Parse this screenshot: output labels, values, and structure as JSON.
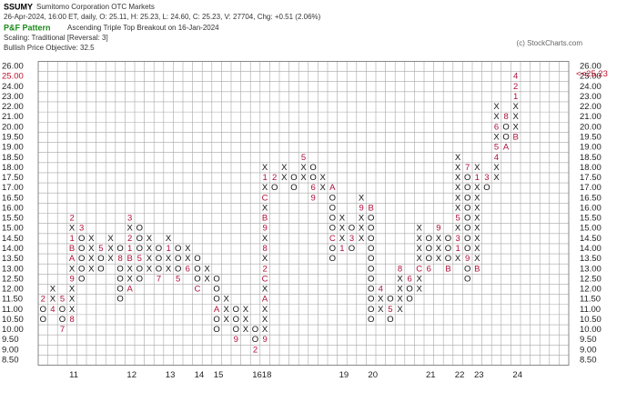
{
  "chart_data": {
    "type": "pnf",
    "header": {
      "symbol": "SSUMY",
      "company": "Sumitomo Corporation  OTC Markets",
      "quote": "26-Apr-2024, 16:00 ET, daily, O: 25.11, H: 25.23, L: 24.60, C: 25.23, V: 27704, Chg: +0.51 (2.06%)",
      "pattern_title": "P&F Pattern",
      "pattern": "Ascending Triple Top Breakout on 16-Jan-2024",
      "scaling": "Scaling: Traditional [Reversal: 3]",
      "objective": "Bullish Price Objective: 32.5",
      "copyright": "(c) StockCharts.com"
    },
    "last_price": 25.23,
    "last_price_label": "<<25.23",
    "grid": true,
    "yticks": [
      {
        "value": 8.5,
        "label": "8.50"
      },
      {
        "value": 9,
        "label": "9.00"
      },
      {
        "value": 9.5,
        "label": "9.50"
      },
      {
        "value": 10,
        "label": "10.00"
      },
      {
        "value": 10.5,
        "label": "10.50"
      },
      {
        "value": 11,
        "label": "11.00"
      },
      {
        "value": 11.5,
        "label": "11.50"
      },
      {
        "value": 12,
        "label": "12.00"
      },
      {
        "value": 12.5,
        "label": "12.50"
      },
      {
        "value": 13,
        "label": "13.00"
      },
      {
        "value": 13.5,
        "label": "13.50"
      },
      {
        "value": 14,
        "label": "14.00"
      },
      {
        "value": 14.5,
        "label": "14.50"
      },
      {
        "value": 15,
        "label": "15.00"
      },
      {
        "value": 15.5,
        "label": "15.50"
      },
      {
        "value": 16,
        "label": "16.00"
      },
      {
        "value": 16.5,
        "label": "16.50"
      },
      {
        "value": 17,
        "label": "17.00"
      },
      {
        "value": 17.5,
        "label": "17.50"
      },
      {
        "value": 18,
        "label": "18.00"
      },
      {
        "value": 18.5,
        "label": "18.50"
      },
      {
        "value": 19,
        "label": "19.00"
      },
      {
        "value": 19.5,
        "label": "19.50"
      },
      {
        "value": 20,
        "label": "20.00"
      },
      {
        "value": 21,
        "label": "21.00"
      },
      {
        "value": 22,
        "label": "22.00"
      },
      {
        "value": 23,
        "label": "23.00"
      },
      {
        "value": 24,
        "label": "24.00"
      },
      {
        "value": 25,
        "label": "25.00"
      },
      {
        "value": 26,
        "label": "26.00"
      }
    ],
    "ylim": [
      8.5,
      26
    ],
    "columns": [
      {
        "symbol": "O",
        "low": 10.5,
        "high": 11.5,
        "marks": [
          {
            "value": 11.5,
            "label": "2"
          }
        ]
      },
      {
        "symbol": "X",
        "low": 11,
        "high": 12,
        "marks": [
          {
            "value": 11,
            "label": "4"
          }
        ]
      },
      {
        "symbol": "O",
        "low": 10,
        "high": 11.5,
        "marks": [
          {
            "value": 11.5,
            "label": "5"
          },
          {
            "value": 10,
            "label": "7"
          }
        ]
      },
      {
        "symbol": "X",
        "low": 10.5,
        "high": 15.5,
        "year": "11",
        "marks": [
          {
            "value": 10.5,
            "label": "8"
          },
          {
            "value": 12.5,
            "label": "9"
          },
          {
            "value": 13.5,
            "label": "A"
          },
          {
            "value": 14,
            "label": "B"
          },
          {
            "value": 14.5,
            "label": "1"
          },
          {
            "value": 15.5,
            "label": "2"
          }
        ]
      },
      {
        "symbol": "O",
        "low": 12.5,
        "high": 15,
        "marks": [
          {
            "value": 15,
            "label": "3"
          }
        ]
      },
      {
        "symbol": "X",
        "low": 13,
        "high": 14.5,
        "marks": []
      },
      {
        "symbol": "O",
        "low": 13,
        "high": 14,
        "marks": [
          {
            "value": 14,
            "label": "5"
          }
        ]
      },
      {
        "symbol": "X",
        "low": 13.5,
        "high": 14.5,
        "marks": []
      },
      {
        "symbol": "O",
        "low": 11.5,
        "high": 14,
        "marks": [
          {
            "value": 13.5,
            "label": "8"
          }
        ]
      },
      {
        "symbol": "X",
        "low": 12,
        "high": 15.5,
        "year": "12",
        "marks": [
          {
            "value": 12,
            "label": "A"
          },
          {
            "value": 13.5,
            "label": "B"
          },
          {
            "value": 14,
            "label": "1"
          },
          {
            "value": 14.5,
            "label": "2"
          },
          {
            "value": 15.5,
            "label": "3"
          }
        ]
      },
      {
        "symbol": "O",
        "low": 12.5,
        "high": 15,
        "marks": [
          {
            "value": 13.5,
            "label": "5"
          }
        ]
      },
      {
        "symbol": "X",
        "low": 13,
        "high": 14.5,
        "marks": []
      },
      {
        "symbol": "O",
        "low": 12.5,
        "high": 14,
        "marks": [
          {
            "value": 12.5,
            "label": "7"
          }
        ]
      },
      {
        "symbol": "X",
        "low": 13,
        "high": 14.5,
        "year": "13",
        "marks": [
          {
            "value": 14,
            "label": "1"
          }
        ]
      },
      {
        "symbol": "O",
        "low": 12.5,
        "high": 14,
        "marks": [
          {
            "value": 12.5,
            "label": "5"
          }
        ]
      },
      {
        "symbol": "X",
        "low": 13,
        "high": 14,
        "marks": [
          {
            "value": 13,
            "label": "6"
          }
        ]
      },
      {
        "symbol": "O",
        "low": 12,
        "high": 13.5,
        "year": "14",
        "marks": [
          {
            "value": 12,
            "label": "C"
          }
        ]
      },
      {
        "symbol": "X",
        "low": 12.5,
        "high": 13,
        "marks": []
      },
      {
        "symbol": "O",
        "low": 10,
        "high": 12.5,
        "year": "15",
        "marks": [
          {
            "value": 11,
            "label": "A"
          }
        ]
      },
      {
        "symbol": "X",
        "low": 10.5,
        "high": 11.5,
        "marks": []
      },
      {
        "symbol": "O",
        "low": 9.5,
        "high": 11,
        "marks": [
          {
            "value": 9.5,
            "label": "9"
          }
        ]
      },
      {
        "symbol": "X",
        "low": 10,
        "high": 11,
        "marks": []
      },
      {
        "symbol": "O",
        "low": 9,
        "high": 10,
        "year": "16",
        "marks": [
          {
            "value": 9,
            "label": "2"
          }
        ]
      },
      {
        "symbol": "X",
        "low": 9.5,
        "high": 18,
        "year": "18",
        "marks": [
          {
            "value": 9.5,
            "label": "9"
          },
          {
            "value": 11.5,
            "label": "A"
          },
          {
            "value": 12.5,
            "label": "C"
          },
          {
            "value": 13,
            "label": "2"
          },
          {
            "value": 14,
            "label": "8"
          },
          {
            "value": 15,
            "label": "9"
          },
          {
            "value": 15.5,
            "label": "B"
          },
          {
            "value": 16.5,
            "label": "C"
          },
          {
            "value": 17.5,
            "label": "1"
          }
        ]
      },
      {
        "symbol": "O",
        "low": 17,
        "high": 17.5,
        "marks": [
          {
            "value": 17.5,
            "label": "2"
          }
        ]
      },
      {
        "symbol": "X",
        "low": 17.5,
        "high": 18,
        "marks": []
      },
      {
        "symbol": "O",
        "low": 17,
        "high": 17.5,
        "marks": []
      },
      {
        "symbol": "X",
        "low": 17.5,
        "high": 18.5,
        "marks": [
          {
            "value": 18.5,
            "label": "5"
          }
        ]
      },
      {
        "symbol": "O",
        "low": 16.5,
        "high": 18,
        "marks": [
          {
            "value": 17,
            "label": "6"
          },
          {
            "value": 16.5,
            "label": "9"
          }
        ]
      },
      {
        "symbol": "X",
        "low": 17,
        "high": 17.5,
        "marks": []
      },
      {
        "symbol": "O",
        "low": 13.5,
        "high": 17,
        "marks": [
          {
            "value": 17,
            "label": "A"
          },
          {
            "value": 14.5,
            "label": "C"
          }
        ]
      },
      {
        "symbol": "X",
        "low": 14,
        "high": 15.5,
        "year": "19",
        "marks": [
          {
            "value": 14,
            "label": "1"
          }
        ]
      },
      {
        "symbol": "O",
        "low": 14,
        "high": 15,
        "marks": [
          {
            "value": 14.5,
            "label": "3"
          }
        ]
      },
      {
        "symbol": "X",
        "low": 14.5,
        "high": 16.5,
        "marks": [
          {
            "value": 16,
            "label": "9"
          }
        ]
      },
      {
        "symbol": "O",
        "low": 10.5,
        "high": 16,
        "year": "20",
        "marks": [
          {
            "value": 16,
            "label": "B"
          }
        ]
      },
      {
        "symbol": "X",
        "low": 11,
        "high": 12,
        "marks": [
          {
            "value": 12,
            "label": "4"
          }
        ]
      },
      {
        "symbol": "O",
        "low": 10.5,
        "high": 11.5,
        "marks": [
          {
            "value": 11,
            "label": "5"
          }
        ]
      },
      {
        "symbol": "X",
        "low": 11,
        "high": 13,
        "marks": [
          {
            "value": 13,
            "label": "8"
          }
        ]
      },
      {
        "symbol": "O",
        "low": 11.5,
        "high": 12.5,
        "marks": [
          {
            "value": 12.5,
            "label": "6"
          }
        ]
      },
      {
        "symbol": "X",
        "low": 12,
        "high": 15,
        "marks": [
          {
            "value": 13,
            "label": "C"
          }
        ]
      },
      {
        "symbol": "O",
        "low": 13,
        "high": 14.5,
        "year": "21",
        "marks": [
          {
            "value": 13,
            "label": "6"
          }
        ]
      },
      {
        "symbol": "X",
        "low": 13.5,
        "high": 15,
        "marks": [
          {
            "value": 15,
            "label": "9"
          }
        ]
      },
      {
        "symbol": "O",
        "low": 13,
        "high": 14.5,
        "marks": [
          {
            "value": 13,
            "label": "B"
          }
        ]
      },
      {
        "symbol": "X",
        "low": 13.5,
        "high": 18.5,
        "year": "22",
        "marks": [
          {
            "value": 14,
            "label": "1"
          },
          {
            "value": 14.5,
            "label": "3"
          },
          {
            "value": 15.5,
            "label": "5"
          }
        ]
      },
      {
        "symbol": "O",
        "low": 12.5,
        "high": 18,
        "marks": [
          {
            "value": 18,
            "label": "7"
          },
          {
            "value": 13.5,
            "label": "9"
          }
        ]
      },
      {
        "symbol": "X",
        "low": 13,
        "high": 18,
        "year": "23",
        "marks": [
          {
            "value": 13,
            "label": "B"
          },
          {
            "value": 17.5,
            "label": "1"
          }
        ]
      },
      {
        "symbol": "O",
        "low": 17,
        "high": 17.5,
        "marks": [
          {
            "value": 17.5,
            "label": "3"
          }
        ]
      },
      {
        "symbol": "X",
        "low": 17.5,
        "high": 22,
        "marks": [
          {
            "value": 18.5,
            "label": "4"
          },
          {
            "value": 19,
            "label": "5"
          },
          {
            "value": 20,
            "label": "6"
          }
        ]
      },
      {
        "symbol": "O",
        "low": 19,
        "high": 21,
        "marks": [
          {
            "value": 21,
            "label": "8"
          },
          {
            "value": 19,
            "label": "A"
          }
        ]
      },
      {
        "symbol": "X",
        "low": 19.5,
        "high": 25,
        "year": "24",
        "marks": [
          {
            "value": 19.5,
            "label": "B"
          },
          {
            "value": 23,
            "label": "1"
          },
          {
            "value": 24,
            "label": "2"
          },
          {
            "value": 25,
            "label": "4"
          }
        ]
      }
    ]
  }
}
